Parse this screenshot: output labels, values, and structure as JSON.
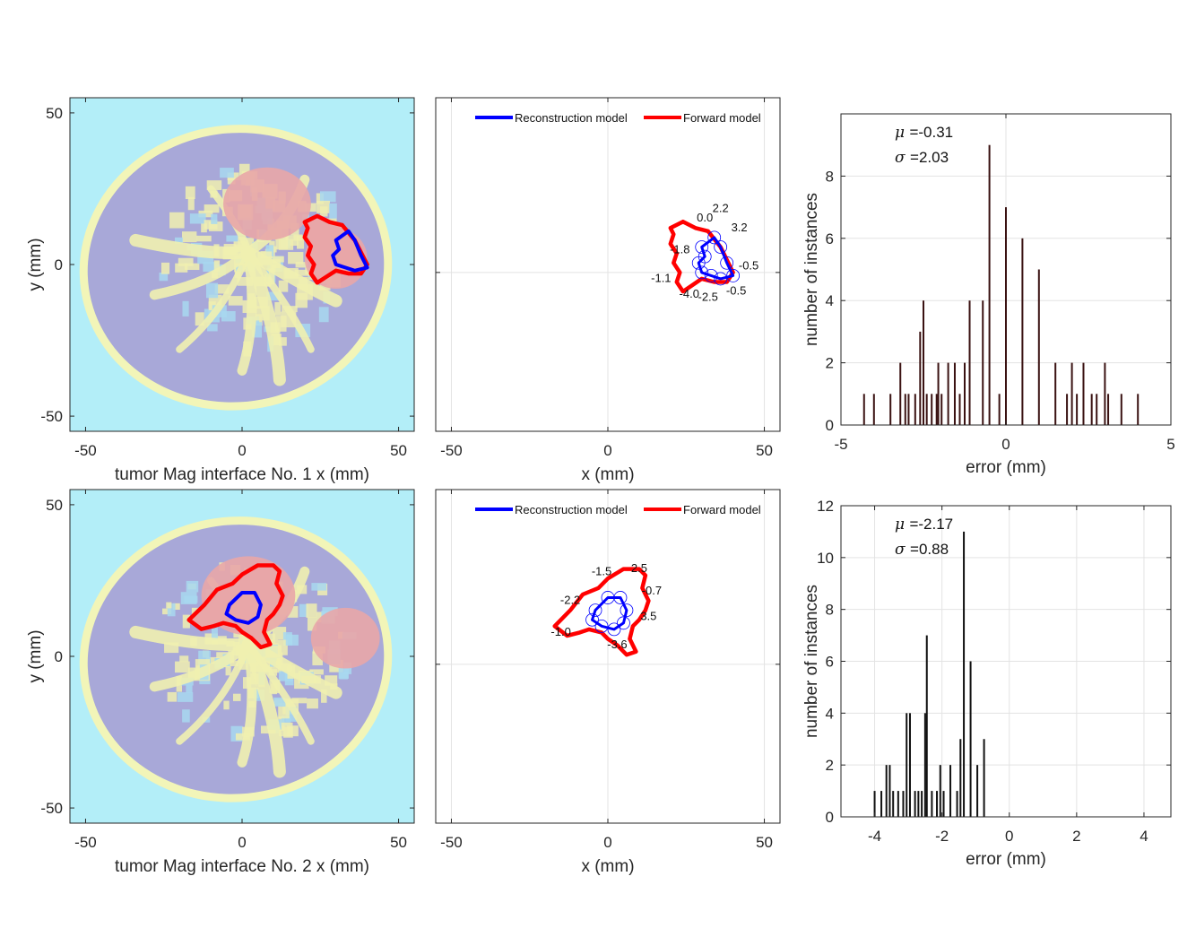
{
  "colors": {
    "tissue_bg": "#b3eef8",
    "skin": "#f2f5b8",
    "fat": "#a8a8d8",
    "fibro": "#f0efb0",
    "transition": "#a8d8f0",
    "tumor": "#e8a6a8",
    "forward": "#ff0000",
    "reconstruction": "#0000ff",
    "histogram_bar": "#3a1212",
    "histogram_bar_2": "#111111"
  },
  "chart_data": [
    {
      "type": "heatmap",
      "id": "a1",
      "xlabel": "tumor Mag interface No. 1 x (mm)",
      "ylabel": "y (mm)",
      "xlim": [
        -55,
        55
      ],
      "ylim": [
        -55,
        55
      ],
      "xticks": [
        -50,
        0,
        50
      ],
      "yticks": [
        -50,
        0,
        50
      ],
      "tumors": [
        {
          "cx": 8,
          "cy": 20,
          "rx": 14,
          "ry": 12
        },
        {
          "cx": 30,
          "cy": 2,
          "rx": 10,
          "ry": 10
        }
      ],
      "forward_contour": [
        [
          20,
          14
        ],
        [
          24,
          16
        ],
        [
          28,
          14
        ],
        [
          32,
          13
        ],
        [
          36,
          8
        ],
        [
          38,
          4
        ],
        [
          40,
          0
        ],
        [
          38,
          -3
        ],
        [
          34,
          -3
        ],
        [
          30,
          -2
        ],
        [
          27,
          -4
        ],
        [
          24,
          -6
        ],
        [
          22,
          -3
        ],
        [
          23,
          0
        ],
        [
          21,
          3
        ],
        [
          22,
          6
        ],
        [
          20,
          9
        ],
        [
          21,
          12
        ]
      ],
      "reconstruction_contour": [
        [
          30,
          8
        ],
        [
          34,
          11
        ],
        [
          36,
          8
        ],
        [
          38,
          3
        ],
        [
          40,
          -1
        ],
        [
          36,
          -2
        ],
        [
          33,
          -1
        ],
        [
          30,
          0
        ],
        [
          29,
          3
        ],
        [
          31,
          5
        ]
      ],
      "grid": false
    },
    {
      "type": "line",
      "id": "b1",
      "xlabel": "x (mm)",
      "ylabel": "",
      "xlim": [
        -55,
        55
      ],
      "ylim": [
        -50,
        55
      ],
      "xticks": [
        -50,
        0,
        50
      ],
      "grid": true,
      "legend": {
        "placement": "top",
        "entries": [
          "Reconstruction model",
          "Forward model"
        ]
      },
      "series": [
        {
          "name": "Reconstruction model",
          "points": [
            [
              30,
              8
            ],
            [
              34,
              11
            ],
            [
              36,
              8
            ],
            [
              38,
              3
            ],
            [
              40,
              -1
            ],
            [
              36,
              -2
            ],
            [
              33,
              -1
            ],
            [
              30,
              0
            ],
            [
              29,
              3
            ],
            [
              31,
              5
            ]
          ]
        },
        {
          "name": "Forward model",
          "points": [
            [
              20,
              14
            ],
            [
              24,
              16
            ],
            [
              28,
              14
            ],
            [
              32,
              13
            ],
            [
              36,
              8
            ],
            [
              38,
              4
            ],
            [
              40,
              0
            ],
            [
              38,
              -3
            ],
            [
              34,
              -3
            ],
            [
              30,
              -2
            ],
            [
              27,
              -4
            ],
            [
              24,
              -6
            ],
            [
              22,
              -3
            ],
            [
              23,
              0
            ],
            [
              21,
              3
            ],
            [
              22,
              6
            ],
            [
              20,
              9
            ],
            [
              21,
              12
            ]
          ]
        }
      ],
      "annotations": [
        {
          "text": "0.0",
          "x": 31,
          "y": 16
        },
        {
          "text": "2.2",
          "x": 36,
          "y": 19
        },
        {
          "text": "3.2",
          "x": 42,
          "y": 13
        },
        {
          "text": "-1.8",
          "x": 23,
          "y": 6
        },
        {
          "text": "-0.5",
          "x": 45,
          "y": 1
        },
        {
          "text": "-1.1",
          "x": 17,
          "y": -3
        },
        {
          "text": "-4.0",
          "x": 26,
          "y": -8
        },
        {
          "text": "-2.5",
          "x": 32,
          "y": -9
        },
        {
          "text": "-0.5",
          "x": 41,
          "y": -7
        }
      ]
    },
    {
      "type": "bar",
      "id": "c1",
      "xlabel": "error (mm)",
      "ylabel": "number of instances",
      "xlim": [
        -5,
        5
      ],
      "ylim": [
        0,
        10
      ],
      "xticks": [
        -5,
        0,
        5
      ],
      "yticks": [
        0,
        2,
        4,
        6,
        8
      ],
      "grid": true,
      "stats": {
        "mu": "=-0.31",
        "sigma": "=2.03"
      },
      "x": [
        -4.3,
        -4.0,
        -3.5,
        -3.2,
        -3.05,
        -2.95,
        -2.75,
        -2.6,
        -2.5,
        -2.4,
        -2.25,
        -2.1,
        -2.05,
        -1.95,
        -1.75,
        -1.55,
        -1.4,
        -1.25,
        -1.1,
        -0.7,
        -0.5,
        -0.2,
        0.0,
        0.5,
        1.0,
        1.5,
        1.85,
        2.0,
        2.15,
        2.35,
        2.6,
        2.75,
        3.0,
        3.1,
        3.5,
        4.0
      ],
      "values": [
        1,
        1,
        1,
        2,
        1,
        1,
        1,
        3,
        4,
        1,
        1,
        1,
        2,
        1,
        2,
        2,
        1,
        2,
        4,
        4,
        9,
        1,
        7,
        6,
        5,
        2,
        1,
        2,
        1,
        2,
        1,
        1,
        2,
        1,
        1,
        1
      ]
    },
    {
      "type": "heatmap",
      "id": "a2",
      "xlabel": "tumor Mag interface No. 2 x (mm)",
      "ylabel": "y (mm)",
      "xlim": [
        -55,
        55
      ],
      "ylim": [
        -55,
        55
      ],
      "xticks": [
        -50,
        0,
        50
      ],
      "yticks": [
        -50,
        0,
        50
      ],
      "tumors": [
        {
          "cx": 2,
          "cy": 20,
          "rx": 15,
          "ry": 13
        },
        {
          "cx": 33,
          "cy": 6,
          "rx": 11,
          "ry": 10
        }
      ],
      "forward_contour": [
        [
          -17,
          12
        ],
        [
          -12,
          17
        ],
        [
          -8,
          22
        ],
        [
          -3,
          24
        ],
        [
          0,
          27
        ],
        [
          5,
          30
        ],
        [
          10,
          30
        ],
        [
          12,
          28
        ],
        [
          11,
          24
        ],
        [
          13,
          20
        ],
        [
          12,
          17
        ],
        [
          10,
          14
        ],
        [
          8,
          12
        ],
        [
          7,
          8
        ],
        [
          9,
          4
        ],
        [
          6,
          3
        ],
        [
          3,
          6
        ],
        [
          0,
          8
        ],
        [
          -2,
          10
        ],
        [
          -6,
          11
        ],
        [
          -9,
          10
        ],
        [
          -13,
          9
        ]
      ],
      "reconstruction_contour": [
        [
          -4,
          17
        ],
        [
          0,
          21
        ],
        [
          4,
          21
        ],
        [
          6,
          17
        ],
        [
          5,
          13
        ],
        [
          2,
          11
        ],
        [
          -2,
          12
        ],
        [
          -5,
          14
        ]
      ],
      "grid": false
    },
    {
      "type": "line",
      "id": "b2",
      "xlabel": "x (mm)",
      "ylabel": "",
      "xlim": [
        -55,
        55
      ],
      "ylim": [
        -50,
        55
      ],
      "xticks": [
        -50,
        0,
        50
      ],
      "grid": true,
      "legend": {
        "placement": "top",
        "entries": [
          "Reconstruction model",
          "Forward model"
        ]
      },
      "series": [
        {
          "name": "Reconstruction model",
          "points": [
            [
              -4,
              17
            ],
            [
              0,
              21
            ],
            [
              4,
              21
            ],
            [
              6,
              17
            ],
            [
              5,
              13
            ],
            [
              2,
              11
            ],
            [
              -2,
              12
            ],
            [
              -5,
              14
            ]
          ]
        },
        {
          "name": "Forward model",
          "points": [
            [
              -17,
              12
            ],
            [
              -12,
              17
            ],
            [
              -8,
              22
            ],
            [
              -3,
              24
            ],
            [
              0,
              27
            ],
            [
              5,
              30
            ],
            [
              10,
              30
            ],
            [
              12,
              28
            ],
            [
              11,
              24
            ],
            [
              13,
              20
            ],
            [
              12,
              17
            ],
            [
              10,
              14
            ],
            [
              8,
              12
            ],
            [
              7,
              8
            ],
            [
              9,
              4
            ],
            [
              6,
              3
            ],
            [
              3,
              6
            ],
            [
              0,
              8
            ],
            [
              -2,
              10
            ],
            [
              -6,
              11
            ],
            [
              -9,
              10
            ],
            [
              -13,
              9
            ]
          ]
        }
      ],
      "annotations": [
        {
          "text": "-1.5",
          "x": -2,
          "y": 28
        },
        {
          "text": "2.5",
          "x": 10,
          "y": 29
        },
        {
          "text": "-2.2",
          "x": -12,
          "y": 19
        },
        {
          "text": "-0.7",
          "x": 14,
          "y": 22
        },
        {
          "text": "3.5",
          "x": 13,
          "y": 14
        },
        {
          "text": "-1.0",
          "x": -15,
          "y": 9
        },
        {
          "text": "-3.6",
          "x": 3,
          "y": 5
        }
      ]
    },
    {
      "type": "bar",
      "id": "c2",
      "xlabel": "error (mm)",
      "ylabel": "number of instances",
      "xlim": [
        -5,
        4.8
      ],
      "ylim": [
        0,
        12
      ],
      "xticks": [
        -4,
        -2,
        0,
        2,
        4
      ],
      "yticks": [
        0,
        2,
        4,
        6,
        8,
        10,
        12
      ],
      "grid": true,
      "stats": {
        "mu": "=-2.17",
        "sigma": "=0.88"
      },
      "x": [
        -4.0,
        -3.8,
        -3.65,
        -3.55,
        -3.45,
        -3.3,
        -3.15,
        -3.05,
        -2.95,
        -2.8,
        -2.7,
        -2.6,
        -2.5,
        -2.45,
        -2.3,
        -2.15,
        -2.05,
        -1.95,
        -1.75,
        -1.55,
        -1.45,
        -1.35,
        -1.15,
        -0.95,
        -0.75
      ],
      "values": [
        1,
        1,
        2,
        2,
        1,
        1,
        1,
        4,
        4,
        1,
        1,
        1,
        4,
        7,
        1,
        1,
        2,
        1,
        2,
        1,
        3,
        11,
        6,
        2,
        3
      ]
    }
  ]
}
